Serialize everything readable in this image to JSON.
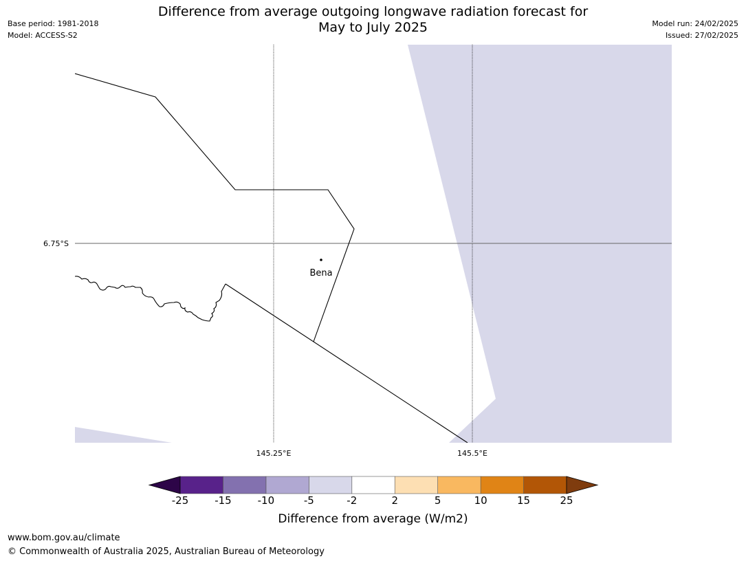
{
  "header": {
    "title_line1": "Difference from average outgoing longwave radiation forecast for",
    "title_line2": "May to July 2025",
    "base_period": "Base period: 1981-2018",
    "model": "Model: ACCESS-S2",
    "model_run": "Model run: 24/02/2025",
    "issued": "Issued: 27/02/2025"
  },
  "map": {
    "gridlines": {
      "lat_label": "6.75°S",
      "lon_labels": [
        "145.25°E",
        "145.5°E"
      ]
    },
    "places": [
      {
        "name": "Bena"
      }
    ],
    "shading_color": "#d8d8ea",
    "shading_category": "-5 to -2"
  },
  "legend": {
    "title": "Difference from average (W/m2)",
    "tick_labels": [
      "-25",
      "-15",
      "-10",
      "-5",
      "-2",
      "2",
      "5",
      "10",
      "15",
      "25"
    ],
    "colors": [
      "#58228a",
      "#8371af",
      "#b0a8d2",
      "#d8d8ea",
      "#ffffff",
      "#fddfb3",
      "#f9b860",
      "#e08416",
      "#b25606"
    ],
    "extend_low_color": "#2d0548",
    "extend_high_color": "#7f3c0e"
  },
  "footer": {
    "url": "www.bom.gov.au/climate",
    "copyright": "© Commonwealth of Australia 2025, Australian Bureau of Meteorology"
  }
}
